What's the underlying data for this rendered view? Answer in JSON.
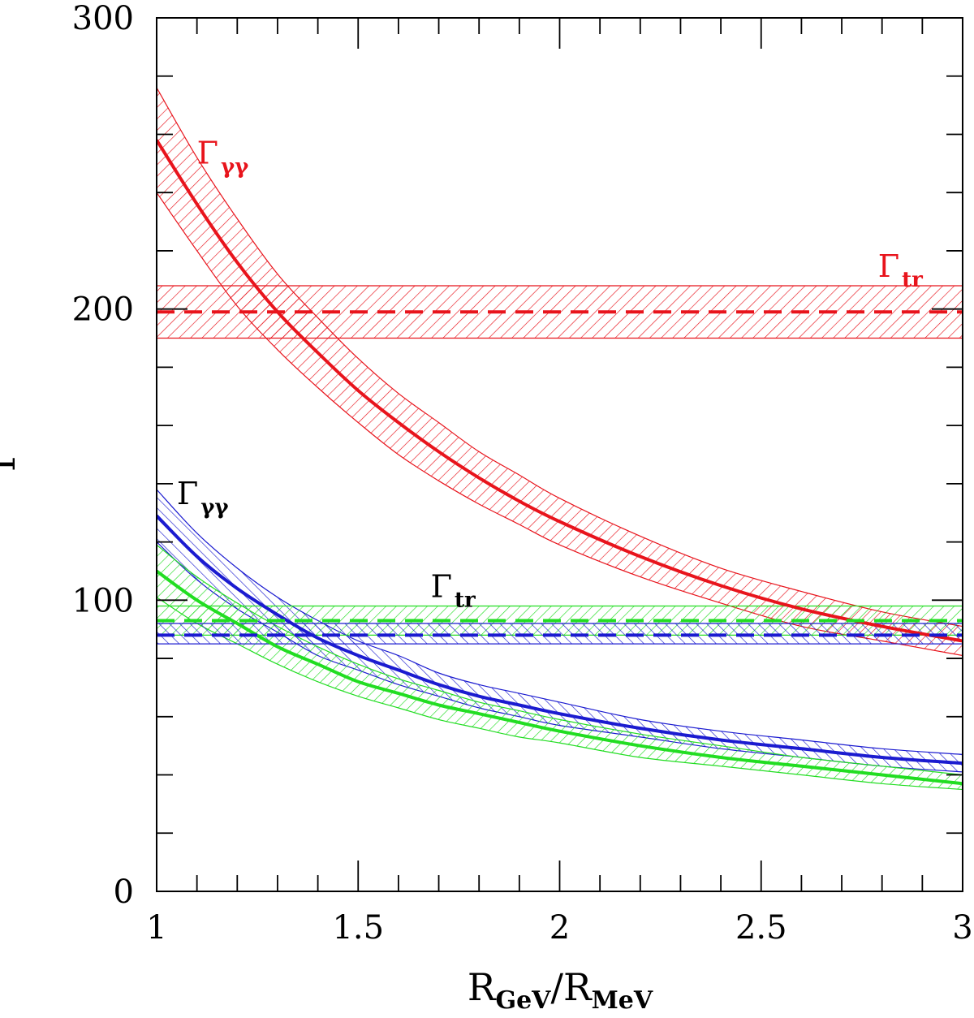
{
  "chart_data": {
    "type": "line",
    "title": "",
    "xlabel": {
      "main1": "R",
      "sub1": "GeV",
      "slash": "/",
      "main2": "R",
      "sub2": "MeV"
    },
    "ylabel": "Γ",
    "xlim": [
      1,
      3
    ],
    "ylim": [
      0,
      300
    ],
    "x_ticks": [
      1,
      1.5,
      2,
      2.5,
      3
    ],
    "x_tick_labels": [
      "1",
      "1.5",
      "2",
      "2.5",
      "3"
    ],
    "y_ticks": [
      0,
      100,
      200,
      300
    ],
    "y_tick_labels": [
      "0",
      "100",
      "200",
      "300"
    ],
    "colors": {
      "red": "#e8141c",
      "blue": "#1b1bd0",
      "green": "#22dd22",
      "axis": "#000000"
    },
    "series": [
      {
        "name": "red-gamma-gamma-curve",
        "color": "red",
        "style": "solid",
        "kind": "curve",
        "x": [
          1.0,
          1.1,
          1.2,
          1.3,
          1.4,
          1.5,
          1.6,
          1.7,
          1.8,
          1.9,
          2.0,
          2.2,
          2.4,
          2.6,
          2.8,
          3.0
        ],
        "values": [
          258,
          236,
          216,
          199,
          185,
          172,
          161,
          151,
          142,
          134,
          127,
          115,
          105,
          97,
          91,
          86
        ],
        "band_lower": [
          240,
          220,
          201,
          186,
          173,
          161,
          150,
          141,
          133,
          126,
          119,
          108,
          99,
          91,
          86,
          81
        ],
        "band_upper": [
          276,
          252,
          231,
          212,
          197,
          183,
          171,
          161,
          151,
          143,
          135,
          122,
          111,
          103,
          96,
          91
        ]
      },
      {
        "name": "blue-gamma-gamma-curve",
        "color": "blue",
        "style": "solid",
        "kind": "curve",
        "x": [
          1.0,
          1.1,
          1.2,
          1.3,
          1.4,
          1.5,
          1.6,
          1.7,
          1.8,
          1.9,
          2.0,
          2.2,
          2.4,
          2.6,
          2.8,
          3.0
        ],
        "values": [
          129,
          115,
          104,
          95,
          87,
          81,
          76,
          71,
          67,
          64,
          61,
          56,
          52,
          49,
          46,
          44
        ],
        "band_lower": [
          120,
          107,
          97,
          89,
          81,
          76,
          71,
          67,
          63,
          60,
          57,
          53,
          49,
          46,
          43,
          41
        ],
        "band_upper": [
          138,
          123,
          111,
          101,
          93,
          86,
          81,
          75,
          71,
          68,
          65,
          59,
          55,
          52,
          49,
          47
        ]
      },
      {
        "name": "green-gamma-gamma-curve",
        "color": "green",
        "style": "solid",
        "kind": "curve",
        "x": [
          1.0,
          1.1,
          1.2,
          1.3,
          1.4,
          1.5,
          1.6,
          1.7,
          1.8,
          1.9,
          2.0,
          2.2,
          2.4,
          2.6,
          2.8,
          3.0
        ],
        "values": [
          110,
          100,
          92,
          84,
          78,
          72,
          68,
          64,
          61,
          58,
          55,
          50,
          46,
          43,
          40,
          37
        ],
        "band_lower": [
          101,
          92,
          85,
          78,
          72,
          67,
          63,
          59,
          56,
          53,
          51,
          46,
          43,
          40,
          37,
          35
        ],
        "band_upper": [
          119,
          108,
          99,
          91,
          84,
          78,
          73,
          69,
          65,
          62,
          59,
          54,
          50,
          46,
          43,
          40
        ]
      },
      {
        "name": "red-gamma-tr-line",
        "color": "red",
        "style": "dashed",
        "kind": "constant",
        "x": [
          1,
          3
        ],
        "values": [
          199,
          199
        ],
        "band_lower": [
          190,
          190
        ],
        "band_upper": [
          208,
          208
        ]
      },
      {
        "name": "green-gamma-tr-line",
        "color": "green",
        "style": "dashed",
        "kind": "constant",
        "x": [
          1,
          3
        ],
        "values": [
          93,
          93
        ],
        "band_lower": [
          88,
          88
        ],
        "band_upper": [
          98,
          98
        ]
      },
      {
        "name": "blue-gamma-tr-line",
        "color": "blue",
        "style": "dashed",
        "kind": "constant",
        "x": [
          1,
          3
        ],
        "values": [
          88,
          88
        ],
        "band_lower": [
          85,
          85
        ],
        "band_upper": [
          92,
          92
        ]
      }
    ],
    "annotations": [
      {
        "name": "label-red-gamma-gamma",
        "main": "Γ",
        "sub": "γγ",
        "color": "red",
        "x": 1.1,
        "y": 250
      },
      {
        "name": "label-red-gamma-tr",
        "main": "Γ",
        "sub": "tr",
        "color": "red",
        "x": 2.79,
        "y": 211
      },
      {
        "name": "label-black-gamma-gamma",
        "main": "Γ",
        "sub": "γγ",
        "color": "axis",
        "x": 1.05,
        "y": 133
      },
      {
        "name": "label-black-gamma-tr",
        "main": "Γ",
        "sub": "tr",
        "color": "axis",
        "x": 1.68,
        "y": 101
      }
    ]
  }
}
